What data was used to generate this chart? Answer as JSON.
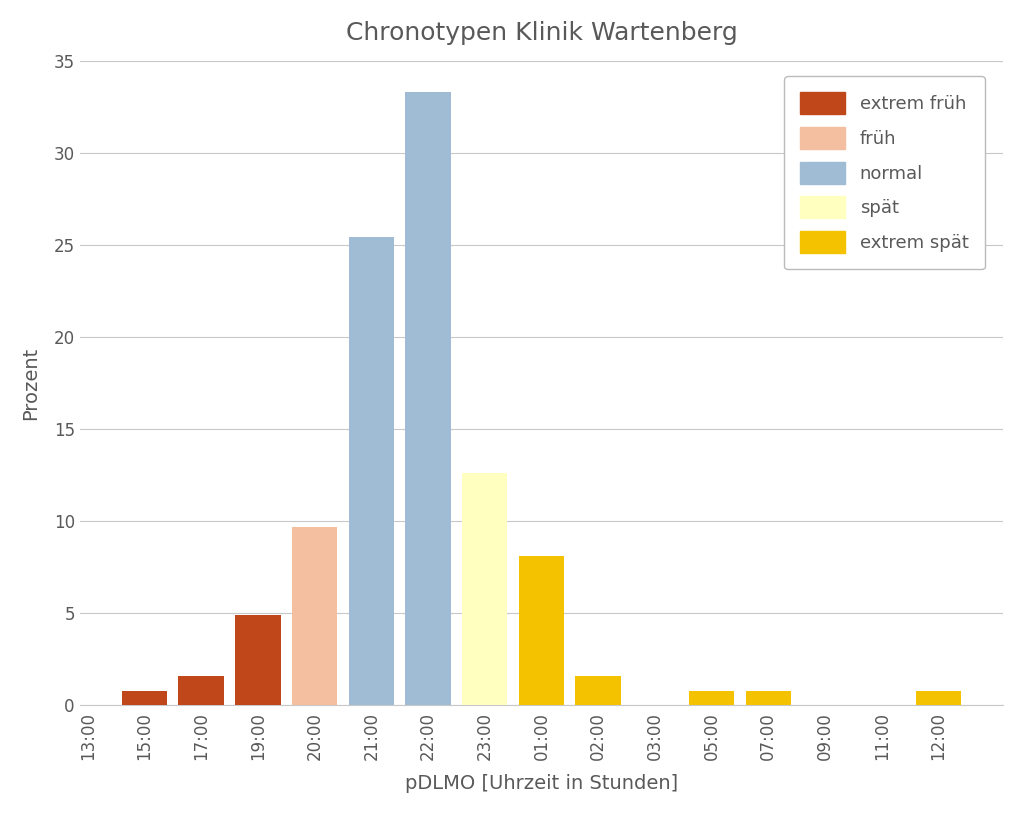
{
  "title": "Chronotypen Klinik Wartenberg",
  "xlabel": "pDLMO [Uhrzeit in Stunden]",
  "ylabel": "Prozent",
  "ylim": [
    0,
    35
  ],
  "yticks": [
    0,
    5,
    10,
    15,
    20,
    25,
    30,
    35
  ],
  "bar_width": 0.8,
  "background_color": "#ffffff",
  "grid_color": "#c8c8c8",
  "title_color": "#595959",
  "axis_color": "#595959",
  "xtick_labels": [
    "13:00",
    "15:00",
    "17:00",
    "19:00",
    "20:00",
    "21:00",
    "22:00",
    "23:00",
    "01:00",
    "02:00",
    "03:00",
    "05:00",
    "07:00",
    "09:00",
    "11:00",
    "12:00"
  ],
  "bars": [
    {
      "time": "15:00",
      "value": 0.8,
      "color": "#c0471a"
    },
    {
      "time": "17:00",
      "value": 1.6,
      "color": "#c0471a"
    },
    {
      "time": "19:00",
      "value": 4.9,
      "color": "#c0471a"
    },
    {
      "time": "20:00",
      "value": 9.7,
      "color": "#f4bfa0"
    },
    {
      "time": "21:00",
      "value": 25.4,
      "color": "#9fbcd4"
    },
    {
      "time": "22:00",
      "value": 33.3,
      "color": "#9fbcd4"
    },
    {
      "time": "23:00",
      "value": 12.6,
      "color": "#ffffc0"
    },
    {
      "time": "01:00",
      "value": 8.1,
      "color": "#f5c200"
    },
    {
      "time": "02:00",
      "value": 1.6,
      "color": "#f5c200"
    },
    {
      "time": "05:00",
      "value": 0.8,
      "color": "#f5c200"
    },
    {
      "time": "07:00",
      "value": 0.8,
      "color": "#f5c200"
    },
    {
      "time": "12:00",
      "value": 0.8,
      "color": "#f5c200"
    }
  ],
  "legend": [
    {
      "label": "extrem früh",
      "color": "#c0471a"
    },
    {
      "label": "früh",
      "color": "#f4bfa0"
    },
    {
      "label": "normal",
      "color": "#9fbcd4"
    },
    {
      "label": "spät",
      "color": "#ffffc0"
    },
    {
      "label": "extrem spät",
      "color": "#f5c200"
    }
  ]
}
